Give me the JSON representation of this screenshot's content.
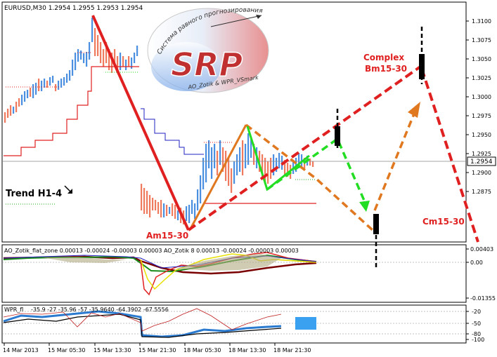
{
  "main_chart": {
    "symbol_header": "EURUSD,M30  1.2954 1.2955 1.2953 1.2954",
    "current_price_label": "1.2954",
    "y_ticks": [
      "1.3100",
      "1.3075",
      "1.3050",
      "1.3025",
      "1.3000",
      "1.2975",
      "1.2950",
      "1.2925",
      "1.2900",
      "1.2875"
    ],
    "annotations": {
      "trend": "Trend H1-4",
      "am": "Am15-30",
      "complex_line1": "Complex",
      "complex_line2": "Bm15-30",
      "cm": "Cm15-30"
    },
    "logo": {
      "big_text": "SRP",
      "arc_text": "Система равного прогнозирования",
      "sub_text": "AO_Zotik & WPR_VSmark"
    }
  },
  "ao_panel": {
    "header": "AO_Zotik_flat_zone 0.00013 -0.00024 -0.00003 0.00003  AO_Zotik  8 0.00013 -0.00024 -0.00003 0.00003",
    "y_ticks": [
      "0.00403",
      "0.00",
      "-0.01355"
    ]
  },
  "wpr_panel": {
    "header": "WPR_fl",
    "header_values": "-35.9 -27  -35.96  -57  -35.9640  -64.3902  -67.5556",
    "y_ticks": [
      "-20",
      "-50",
      "-80",
      "-100"
    ]
  },
  "x_axis": {
    "ticks": [
      "14 Mar 2013",
      "15 Mar 05:30",
      "15 Mar 13:30",
      "15 Mar 21:30",
      "18 Mar 05:30",
      "18 Mar 13:30",
      "18 Mar 21:30"
    ]
  },
  "chart_data": [
    {
      "type": "line",
      "title": "EURUSD,M30",
      "ylim": [
        1.286,
        1.312
      ],
      "price_levels": {
        "current": 1.2954
      },
      "forecast_points": [
        {
          "label": "Am15-30",
          "y": 1.288
        },
        {
          "label": "Bm15-30",
          "y": 1.306
        },
        {
          "label": "Cm15-30",
          "y": 1.286
        }
      ]
    },
    {
      "type": "line",
      "title": "AO_Zotik_flat_zone",
      "series_values": [
        0.00013,
        -0.00024,
        -3e-05,
        3e-05
      ],
      "ylim": [
        -0.01355,
        0.00403
      ]
    },
    {
      "type": "line",
      "title": "WPR",
      "ylim": [
        -100,
        0
      ],
      "levels": [
        -20,
        -50,
        -80
      ]
    }
  ],
  "colors": {
    "bull": "#4a8fe0",
    "bear": "#f07a5e",
    "red_line": "#e02020",
    "orange": "#e07820",
    "green": "#22dd22",
    "blue_line": "#2020c0"
  }
}
